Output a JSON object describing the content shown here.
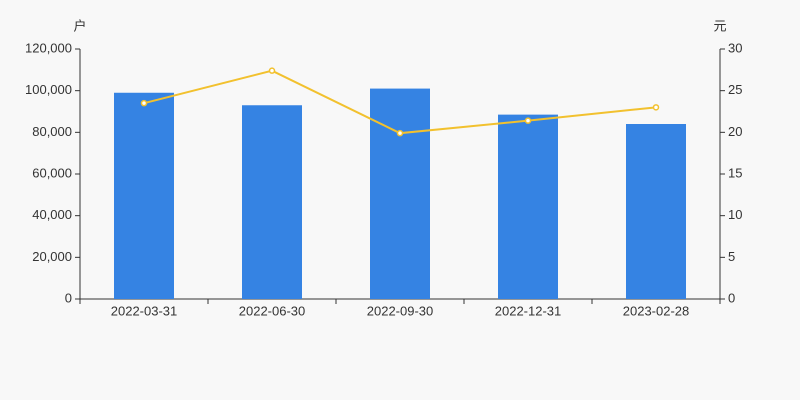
{
  "chart_data": {
    "type": "bar-line",
    "y_label": "户",
    "y2_label": "元",
    "categories": [
      "2022-03-31",
      "2022-06-30",
      "2022-09-30",
      "2022-12-31",
      "2023-02-28"
    ],
    "series": [
      {
        "type": "bar",
        "color": "#3583e3",
        "values": [
          99000,
          93000,
          101000,
          88500,
          84000
        ]
      },
      {
        "type": "line",
        "axis": "y2",
        "color": "#f2c12e",
        "values": [
          23.5,
          27.4,
          19.9,
          21.4,
          23.0
        ]
      }
    ],
    "ylim": [
      0,
      120000
    ],
    "yticks": [
      0,
      {
        "value": 20000,
        "label": "20,000"
      },
      {
        "value": 40000,
        "label": "40,000"
      },
      {
        "value": 60000,
        "label": "60,000"
      },
      {
        "value": 80000,
        "label": "80,000"
      },
      {
        "value": 100000,
        "label": "100,000"
      },
      {
        "value": 120000,
        "label": "120,000"
      }
    ],
    "y2lim": [
      0,
      30
    ],
    "y2ticks": [
      0,
      5,
      10,
      15,
      20,
      25,
      30
    ]
  }
}
